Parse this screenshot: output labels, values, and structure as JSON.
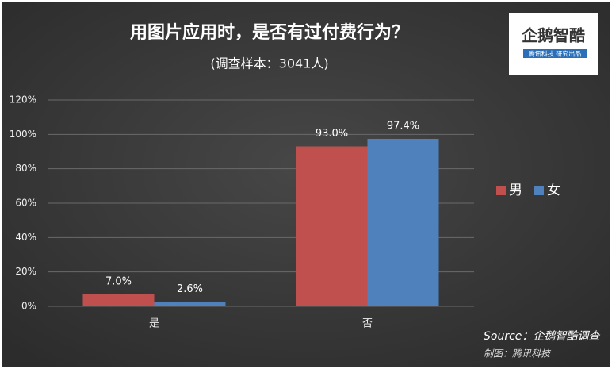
{
  "chart_data": {
    "type": "bar",
    "title": "用图片应用时，是否有过付费行为？",
    "subtitle": "(调查样本：3041人)",
    "categories": [
      "是",
      "否"
    ],
    "series": [
      {
        "name": "男",
        "color": "#c0504d",
        "values": [
          7.0,
          93.0
        ],
        "value_labels": [
          "7.0%",
          "93.0%"
        ]
      },
      {
        "name": "女",
        "color": "#4f81bd",
        "values": [
          2.6,
          97.4
        ],
        "value_labels": [
          "2.6%",
          "97.4%"
        ]
      }
    ],
    "ylim": [
      0,
      120
    ],
    "yticks": [
      {
        "value": 0,
        "label": "0%"
      },
      {
        "value": 20,
        "label": "20%"
      },
      {
        "value": 40,
        "label": "40%"
      },
      {
        "value": 60,
        "label": "60%"
      },
      {
        "value": 80,
        "label": "80%"
      },
      {
        "value": 100,
        "label": "100%"
      },
      {
        "value": 120,
        "label": "120%"
      }
    ],
    "grid": true,
    "legend": "right",
    "source": "Source：企鹅智酷调查",
    "credit": "制图：腾讯科技",
    "logo_title": "企鹅智酷",
    "logo_subtitle": "腾讯科技 研究出品"
  }
}
